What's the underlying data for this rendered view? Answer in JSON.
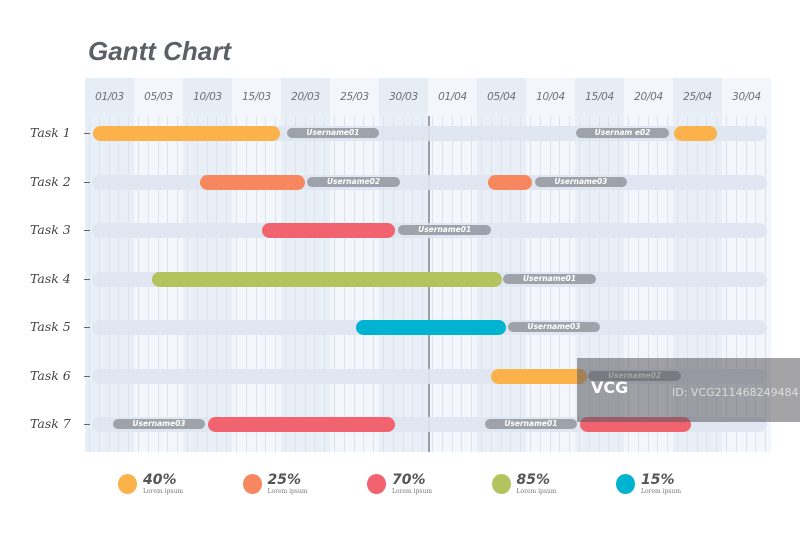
{
  "chart_data": {
    "type": "gantt",
    "title": "Gantt Chart",
    "dates": [
      "01/03",
      "05/03",
      "10/03",
      "15/03",
      "20/03",
      "25/03",
      "30/03",
      "01/04",
      "05/04",
      "10/04",
      "15/04",
      "20/04",
      "25/04",
      "30/04"
    ],
    "today_col": 7.0,
    "colors": {
      "orange": "#fbb24a",
      "coral": "#f6875f",
      "red": "#f0636f",
      "green": "#b3c35e",
      "cyan": "#00b3d1"
    },
    "tasks": [
      {
        "name": "Task 1",
        "segments": [
          {
            "type": "bar",
            "color": "orange",
            "start": 0.16,
            "end": 3.98
          },
          {
            "type": "label",
            "text": "Username01",
            "start": 4.12,
            "end": 6.0
          },
          {
            "type": "label",
            "text": "Usernam e02",
            "start": 10.02,
            "end": 11.92
          },
          {
            "type": "bar",
            "color": "orange",
            "start": 12.02,
            "end": 12.9
          }
        ]
      },
      {
        "name": "Task 2",
        "segments": [
          {
            "type": "bar",
            "color": "coral",
            "start": 2.35,
            "end": 4.49
          },
          {
            "type": "label",
            "text": "Username02",
            "start": 4.53,
            "end": 6.43
          },
          {
            "type": "bar",
            "color": "coral",
            "start": 8.22,
            "end": 9.12
          },
          {
            "type": "label",
            "text": "Username03",
            "start": 9.18,
            "end": 11.06
          }
        ]
      },
      {
        "name": "Task 3",
        "segments": [
          {
            "type": "bar",
            "color": "red",
            "start": 3.61,
            "end": 6.33
          },
          {
            "type": "label",
            "text": "Username01",
            "start": 6.39,
            "end": 8.29
          }
        ]
      },
      {
        "name": "Task 4",
        "segments": [
          {
            "type": "bar",
            "color": "green",
            "start": 1.37,
            "end": 8.51
          },
          {
            "type": "label",
            "text": "Username01",
            "start": 8.53,
            "end": 10.43
          }
        ]
      },
      {
        "name": "Task 5",
        "segments": [
          {
            "type": "bar",
            "color": "cyan",
            "start": 5.53,
            "end": 8.59
          },
          {
            "type": "label",
            "text": "Username03",
            "start": 8.63,
            "end": 10.51
          }
        ]
      },
      {
        "name": "Task 6",
        "segments": [
          {
            "type": "bar",
            "color": "orange",
            "start": 8.29,
            "end": 10.24
          },
          {
            "type": "label",
            "text": "Username02",
            "start": 10.27,
            "end": 12.16
          }
        ]
      },
      {
        "name": "Task 7",
        "segments": [
          {
            "type": "label",
            "text": "Username03",
            "start": 0.57,
            "end": 2.45
          },
          {
            "type": "bar",
            "color": "red",
            "start": 2.51,
            "end": 6.33
          },
          {
            "type": "label",
            "text": "Username01",
            "start": 8.16,
            "end": 10.04
          },
          {
            "type": "bar",
            "color": "red",
            "start": 10.1,
            "end": 12.37
          }
        ]
      }
    ],
    "legend": [
      {
        "color": "orange",
        "value": "40%",
        "sub": "Lorem ipsum"
      },
      {
        "color": "coral",
        "value": "25%",
        "sub": "Lorem ipsum"
      },
      {
        "color": "red",
        "value": "70%",
        "sub": "Lorem ipsum"
      },
      {
        "color": "green",
        "value": "85%",
        "sub": "Lorem ipsum"
      },
      {
        "color": "cyan",
        "value": "15%",
        "sub": "Lorem ipsum"
      }
    ]
  },
  "watermark": {
    "brand": "VCG",
    "id": "ID: VCG211468249484"
  }
}
